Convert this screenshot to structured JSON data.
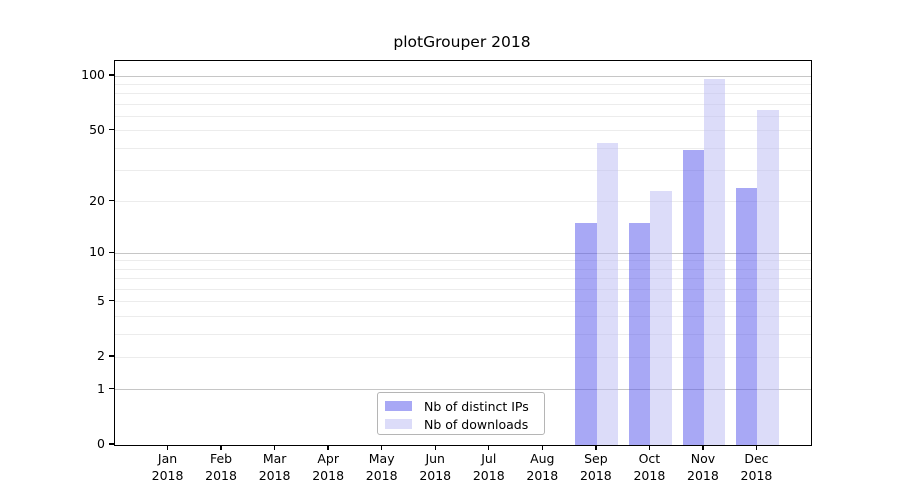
{
  "chart_data": {
    "type": "bar",
    "title": "plotGrouper 2018",
    "categories": [
      "Jan",
      "Feb",
      "Mar",
      "Apr",
      "May",
      "Jun",
      "Jul",
      "Aug",
      "Sep",
      "Oct",
      "Nov",
      "Dec"
    ],
    "category_year": "2018",
    "series": [
      {
        "name": "Nb of distinct IPs",
        "color": "rgba(81,81,235,0.5)",
        "values": [
          0,
          0,
          0,
          0,
          0,
          0,
          0,
          0,
          15,
          15,
          39,
          24
        ]
      },
      {
        "name": "Nb of downloads",
        "color": "rgba(185,185,243,0.5)",
        "values": [
          0,
          0,
          0,
          0,
          0,
          0,
          0,
          0,
          43,
          23,
          97,
          65
        ]
      }
    ],
    "yscale": "log1p",
    "ylim": [
      0,
      121
    ],
    "yticks": [
      0,
      1,
      2,
      5,
      10,
      20,
      50,
      100
    ],
    "gridlines": {
      "major": [
        1,
        10,
        100
      ],
      "minor": [
        2,
        3,
        4,
        5,
        6,
        7,
        8,
        9,
        20,
        30,
        40,
        50,
        60,
        70,
        80,
        90
      ]
    },
    "grid_colors": {
      "major": "#c6c6c6",
      "minor": "#ececec"
    },
    "legend_position": "lower center",
    "xlabel": "",
    "ylabel": ""
  }
}
